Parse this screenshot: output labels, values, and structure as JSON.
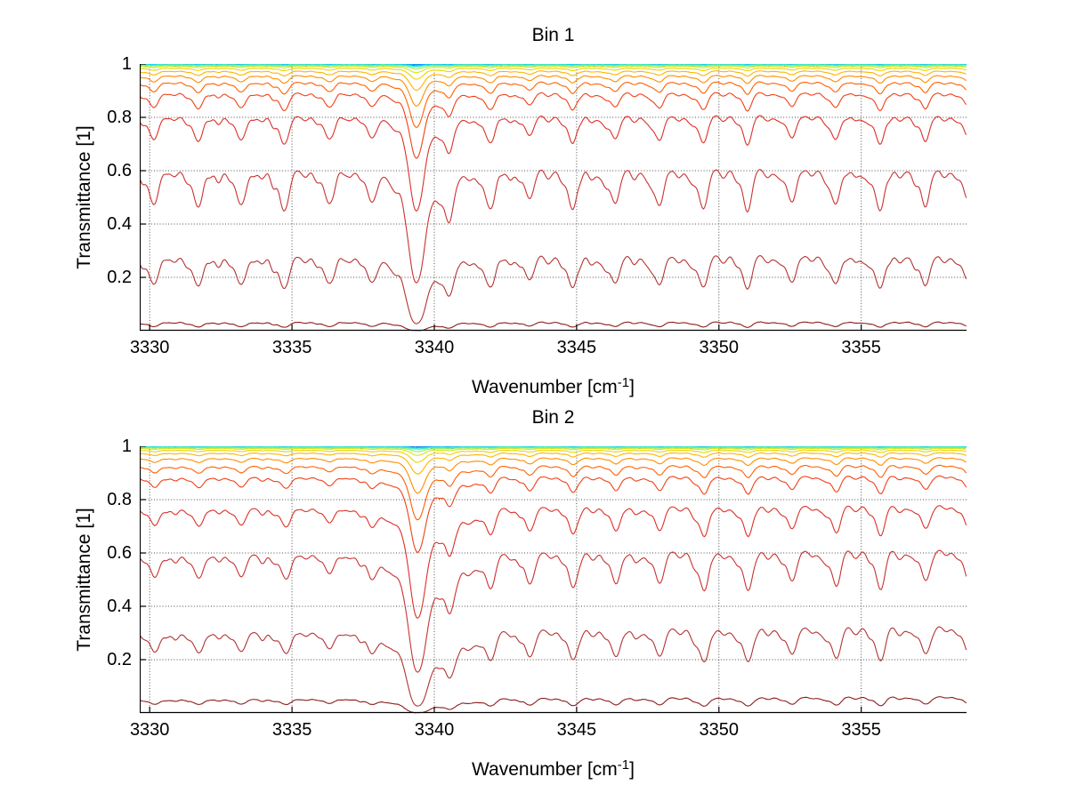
{
  "figure": {
    "background": "#FFFFFF",
    "grid_color": "#4d4d4d",
    "axis_color": "#000000"
  },
  "chart_data": [
    {
      "type": "line",
      "title": "Bin 1",
      "xlabel": "Wavenumber [cm-1]",
      "xlabel_parts": {
        "pre": "Wavenumber [cm",
        "sup": "-1",
        "post": "]"
      },
      "ylabel": "Transmittance [1]",
      "xlim": [
        3329.65,
        3358.7
      ],
      "ylim": [
        0,
        1
      ],
      "grid": "dotted",
      "xticks": [
        3330,
        3335,
        3340,
        3345,
        3350,
        3355
      ],
      "xtick_labels": [
        "3330",
        "3335",
        "3340",
        "3345",
        "3350",
        "3355"
      ],
      "yticks": [
        1,
        0.8,
        0.6,
        0.4,
        0.2
      ],
      "ytick_labels": [
        "1",
        "0.8",
        "0.6",
        "0.4",
        "0.2"
      ],
      "model": "family of transmittance spectra T_i(v)=exp(-A_i*slope(v)*w_eff(v)); A_i=-ln(baseline_i); w_eff=1+(w-1)/(1+A_i/saturation); w(v)=1+sum of gaussian absorption lines",
      "curve_baselines_left_edge": [
        0.99995,
        0.9999,
        0.9998,
        0.9996,
        0.9992,
        0.9986,
        0.9975,
        0.9955,
        0.992,
        0.9855,
        0.9745,
        0.958,
        0.9335,
        0.894,
        0.808,
        0.607,
        0.283,
        0.033
      ],
      "curve_colors": [
        "#181888",
        "#1818D0",
        "#2048FF",
        "#1088FF",
        "#00C0FF",
        "#20E4E4",
        "#50F4A8",
        "#98EC60",
        "#D4E420",
        "#ECD400",
        "#FFB400",
        "#FF8C00",
        "#FF6000",
        "#F04018",
        "#DC3028",
        "#C83232",
        "#B23434",
        "#8C1C1C"
      ],
      "curve_noise": [
        0.007,
        0.005,
        0.0035,
        0.002,
        0.0015,
        0.0025,
        0.0012,
        0.0008,
        0.0005,
        0.0004,
        0.0003,
        0,
        0,
        0,
        0,
        0,
        0,
        0
      ],
      "absorption_lines": [
        [
          3330.15,
          0.62
        ],
        [
          3331.7,
          0.66
        ],
        [
          3333.2,
          0.62
        ],
        [
          3334.75,
          0.7
        ],
        [
          3336.3,
          0.58
        ],
        [
          3337.8,
          0.52
        ],
        [
          3339.38,
          2.6,
          0.23
        ],
        [
          3339.55,
          0.4,
          0.85
        ],
        [
          3340.52,
          0.7
        ],
        [
          3341.95,
          0.66
        ],
        [
          3343.35,
          0.52
        ],
        [
          3344.85,
          0.62
        ],
        [
          3346.35,
          0.58
        ],
        [
          3347.9,
          0.6
        ],
        [
          3349.45,
          0.7
        ],
        [
          3351.0,
          0.7
        ],
        [
          3352.55,
          0.55
        ],
        [
          3354.1,
          0.63
        ],
        [
          3355.65,
          0.7
        ],
        [
          3357.25,
          0.58
        ],
        [
          3358.75,
          0.55
        ]
      ],
      "default_sigma": 0.155,
      "satellites": [
        [
          -0.38,
          0.28,
          0.11
        ],
        [
          0.72,
          0.2,
          0.12
        ]
      ],
      "texture": {
        "seed": 7,
        "amplitude": 0.13,
        "spacing": 0.31,
        "sigma": 0.095
      },
      "saturation": 2.0,
      "slope_end": 0.985
    },
    {
      "type": "line",
      "title": "Bin 2",
      "xlabel": "Wavenumber [cm-1]",
      "xlabel_parts": {
        "pre": "Wavenumber [cm",
        "sup": "-1",
        "post": "]"
      },
      "ylabel": "Transmittance [1]",
      "xlim": [
        3329.65,
        3358.7
      ],
      "ylim": [
        0,
        1
      ],
      "grid": "dotted",
      "xticks": [
        3330,
        3335,
        3340,
        3345,
        3350,
        3355
      ],
      "xtick_labels": [
        "3330",
        "3335",
        "3340",
        "3345",
        "3350",
        "3355"
      ],
      "yticks": [
        1,
        0.8,
        0.6,
        0.4,
        0.2
      ],
      "ytick_labels": [
        "1",
        "0.8",
        "0.6",
        "0.4",
        "0.2"
      ],
      "model": "family of transmittance spectra T_i(v)=exp(-A_i*slope(v)*w_eff(v)); A_i=-ln(baseline_i); w_eff=1+(w-1)/(1+A_i/saturation); w(v)=1+sum of gaussian absorption lines",
      "curve_baselines_left_edge": [
        0.99995,
        0.9999,
        0.9998,
        0.9996,
        0.9992,
        0.9986,
        0.9975,
        0.9955,
        0.992,
        0.9855,
        0.9745,
        0.955,
        0.925,
        0.883,
        0.766,
        0.592,
        0.3,
        0.05
      ],
      "curve_colors": [
        "#181888",
        "#1818D0",
        "#2048FF",
        "#1088FF",
        "#00C0FF",
        "#20E4E4",
        "#50F4A8",
        "#98EC60",
        "#D4E420",
        "#ECD400",
        "#FFB400",
        "#FF8C00",
        "#FF6000",
        "#F04018",
        "#DC3028",
        "#C83232",
        "#B23434",
        "#8C1C1C"
      ],
      "curve_noise": [
        0.007,
        0.005,
        0.0035,
        0.002,
        0.0015,
        0.0025,
        0.0012,
        0.0008,
        0.0005,
        0.0004,
        0.0003,
        0,
        0,
        0,
        0,
        0,
        0,
        0
      ],
      "absorption_lines": [
        [
          3330.18,
          0.36
        ],
        [
          3331.72,
          0.37
        ],
        [
          3333.22,
          0.36
        ],
        [
          3334.78,
          0.4
        ],
        [
          3336.32,
          0.33
        ],
        [
          3337.82,
          0.3
        ],
        [
          3339.42,
          2.75,
          0.24
        ],
        [
          3339.75,
          0.62,
          1.0
        ],
        [
          3340.55,
          0.66
        ],
        [
          3341.98,
          0.58
        ],
        [
          3343.38,
          0.5
        ],
        [
          3344.88,
          0.58
        ],
        [
          3346.38,
          0.54
        ],
        [
          3347.92,
          0.57
        ],
        [
          3349.47,
          0.66
        ],
        [
          3351.02,
          0.68
        ],
        [
          3352.57,
          0.54
        ],
        [
          3354.12,
          0.6
        ],
        [
          3355.67,
          0.68
        ],
        [
          3357.27,
          0.56
        ],
        [
          3358.77,
          0.52
        ]
      ],
      "default_sigma": 0.155,
      "satellites": [
        [
          -0.38,
          0.28,
          0.11
        ],
        [
          0.72,
          0.2,
          0.12
        ]
      ],
      "texture": {
        "seed": 13,
        "amplitude": 0.1,
        "spacing": 0.31,
        "sigma": 0.095
      },
      "saturation": 2.0,
      "slope_end": 0.92
    }
  ]
}
